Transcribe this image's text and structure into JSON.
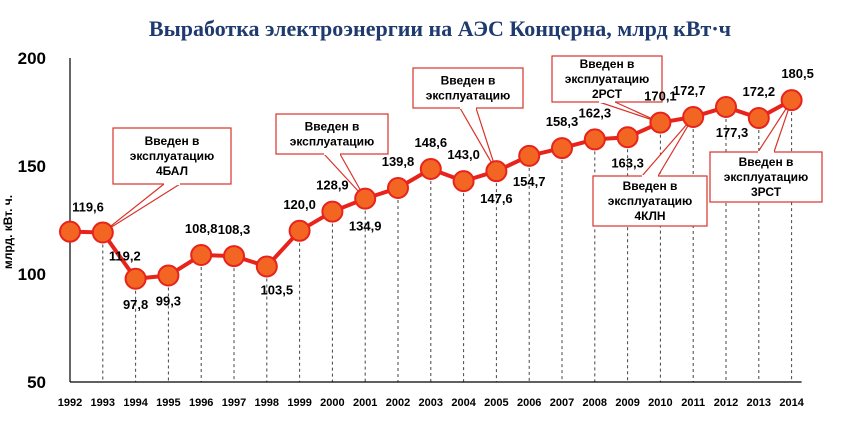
{
  "chart_data": {
    "type": "line",
    "title": "Выработка электроэнергии на АЭС Концерна, млрд кВт·ч",
    "ylabel": "млрд. кВт. ч.",
    "xlabel": "",
    "ylim": [
      50,
      200
    ],
    "yticks": [
      50,
      100,
      150,
      200
    ],
    "grid": false,
    "categories": [
      "1992",
      "1993",
      "1994",
      "1995",
      "1996",
      "1997",
      "1998",
      "1999",
      "2000",
      "2001",
      "2002",
      "2003",
      "2004",
      "2005",
      "2006",
      "2007",
      "2008",
      "2009",
      "2010",
      "2011",
      "2012",
      "2013",
      "2014"
    ],
    "values": [
      119.6,
      119.2,
      97.8,
      99.3,
      108.8,
      108.3,
      103.5,
      120.0,
      128.9,
      134.9,
      139.8,
      148.6,
      143.0,
      147.6,
      154.7,
      158.3,
      162.3,
      163.3,
      170.1,
      172.7,
      177.3,
      172.2,
      180.5
    ],
    "value_labels": [
      "119,6",
      "119,2",
      "97,8",
      "99,3",
      "108,8",
      "108,3",
      "103,5",
      "120,0",
      "128,9",
      "134,9",
      "139,8",
      "148,6",
      "143,0",
      "147,6",
      "154,7",
      "158,3",
      "162,3",
      "163,3",
      "170,1",
      "172,7",
      "177,3",
      "172,2",
      "180,5"
    ],
    "colors": {
      "line": "#e8231b",
      "marker": "#f26522",
      "title": "#1f3a6e"
    },
    "annotations": [
      {
        "year": "1993",
        "lines": [
          "Введен в",
          "эксплуатацию",
          "4БАЛ"
        ]
      },
      {
        "year": "2001",
        "lines": [
          "Введен в",
          "эксплуатацию"
        ]
      },
      {
        "year": "2005",
        "lines": [
          "Введен в",
          "эксплуатацию"
        ]
      },
      {
        "year": "2010",
        "lines": [
          "Введен в",
          "эксплуатацию",
          "2РСТ"
        ]
      },
      {
        "year": "2011",
        "lines": [
          "Введен в",
          "эксплуатацию",
          "4КЛН"
        ]
      },
      {
        "year": "2014",
        "lines": [
          "Введен в",
          "эксплуатацию",
          "3РСТ"
        ]
      }
    ]
  }
}
